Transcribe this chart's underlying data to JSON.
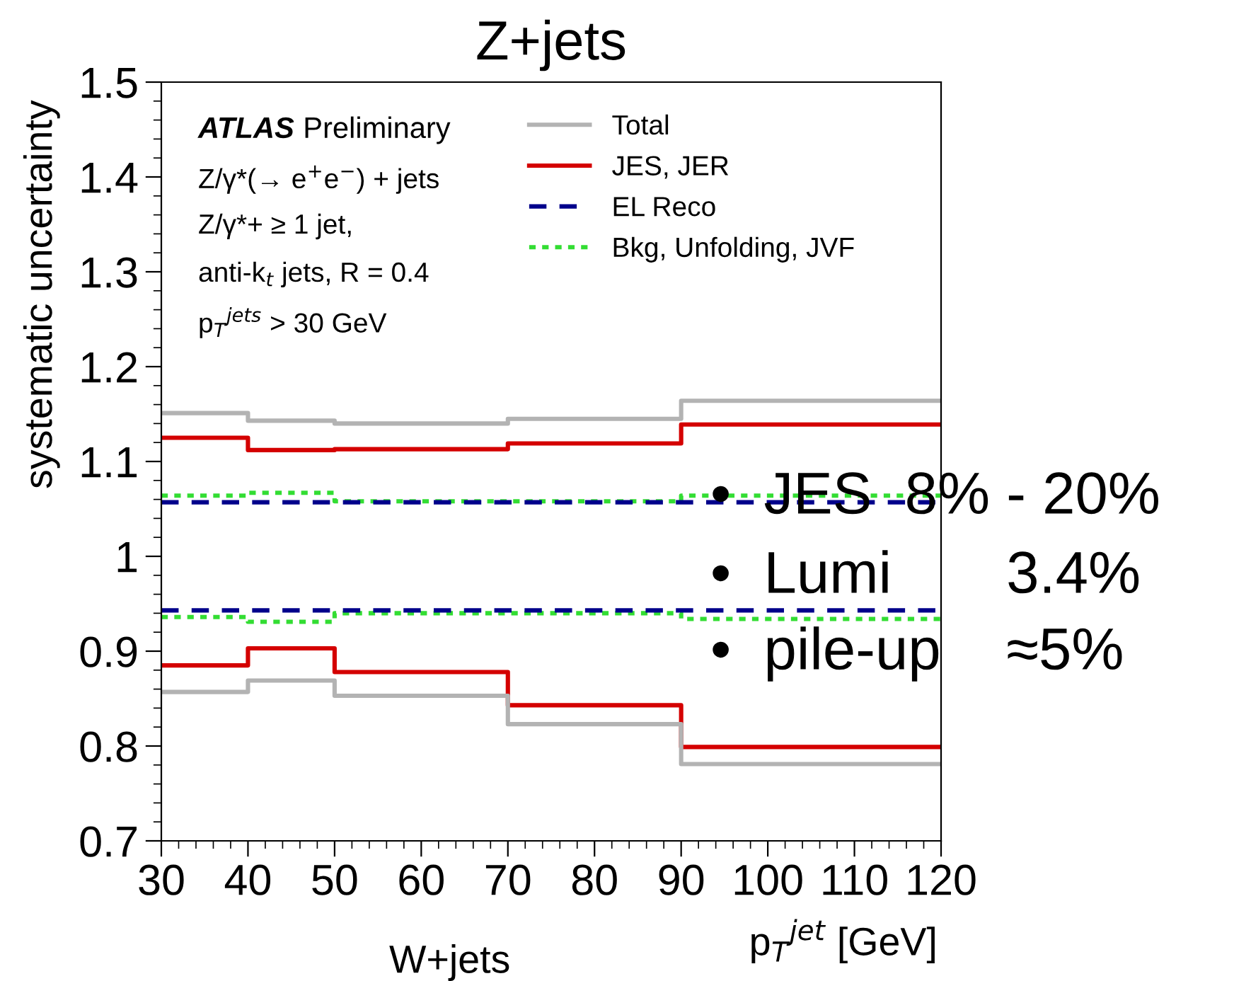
{
  "chart_data": {
    "type": "step",
    "title": "Z+jets",
    "xlabel": "p$_{T}$$^{jet}$ [GeV]",
    "ylabel": "systematic uncertainty",
    "x": [
      30,
      40,
      50,
      70,
      90,
      120
    ],
    "series": [
      {
        "name": "Total",
        "color": "#b3b3b3",
        "line_style": "solid",
        "values": [
          1.151,
          1.143,
          1.14,
          1.145,
          1.164,
          1.164
        ]
      },
      {
        "color": "#b3b3b3",
        "line_style": "solid",
        "values": [
          0.857,
          0.869,
          0.853,
          0.823,
          0.781,
          0.781
        ]
      },
      {
        "name": "JES, JER",
        "color": "#d40000",
        "line_style": "solid",
        "values": [
          1.125,
          1.112,
          1.113,
          1.119,
          1.139,
          1.139
        ]
      },
      {
        "color": "#d40000",
        "line_style": "solid",
        "values": [
          0.885,
          0.903,
          0.878,
          0.843,
          0.799,
          0.799
        ]
      },
      {
        "name": "EL Reco",
        "color": "#00008b",
        "line_style": "dashed",
        "values": [
          1.057,
          1.057,
          1.057,
          1.057,
          1.057,
          1.057
        ]
      },
      {
        "color": "#00008b",
        "line_style": "dashed",
        "values": [
          0.943,
          0.943,
          0.943,
          0.943,
          0.943,
          0.943
        ]
      },
      {
        "name": "Bkg, Unfolding, JVF",
        "color": "#33dd33",
        "line_style": "dotted",
        "values": [
          1.064,
          1.067,
          1.058,
          1.058,
          1.064,
          1.064
        ]
      },
      {
        "color": "#33dd33",
        "line_style": "dotted",
        "values": [
          0.936,
          0.931,
          0.94,
          0.94,
          0.934,
          0.934
        ]
      }
    ],
    "xlim": [
      30,
      120
    ],
    "xticks": [
      30,
      40,
      50,
      60,
      70,
      80,
      90,
      100,
      110,
      120
    ],
    "ylim": [
      0.7,
      1.5
    ],
    "yticks": [
      0.7,
      0.8,
      0.9,
      {
        "value": 1.0,
        "label": "1"
      },
      1.1,
      1.2,
      1.3,
      1.4,
      1.5
    ],
    "grid": false,
    "legend": "top right",
    "annotations": [
      "ATLAS",
      "Preliminary",
      "Z/γ*(→ e$^{+}$e$^{−}$) + jets",
      "Z/γ*+ ≥ 1 jet,",
      "anti-k$_{t}$ jets, R = 0.4",
      "p$_{T}$$^{jets}$ > 30 GeV",
      "•  JES  8% - 20%",
      "•  Lumi       3.4%",
      "•  pile-up    ≈5%",
      "W+jets"
    ]
  }
}
